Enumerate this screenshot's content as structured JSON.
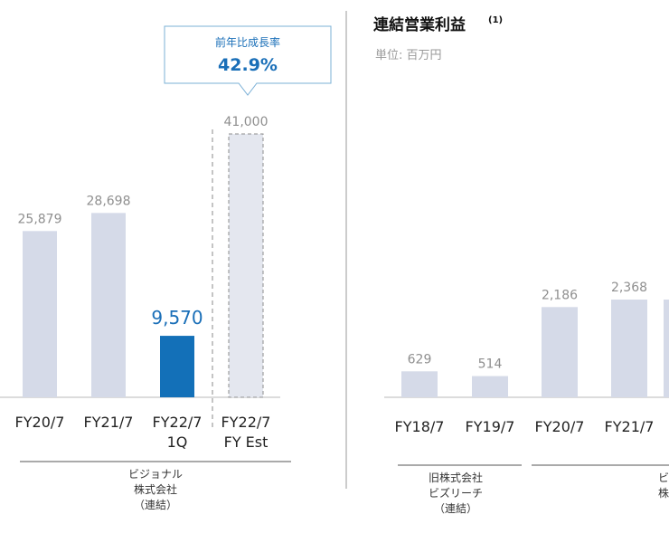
{
  "colors": {
    "bar_gray": "#d5dae8",
    "bar_blue": "#1370b8",
    "estimate_fill": "#e4e7ef",
    "estimate_border": "#8c8c8c",
    "axis": "#b8b8b8",
    "divider": "#9a9a9a",
    "callout_border": "#7bb0d6"
  },
  "callout": {
    "label": "前年比成長率",
    "value": "42.9%"
  },
  "chart_data": [
    {
      "type": "bar",
      "title": "",
      "xlabel": "",
      "ylabel": "",
      "ylim": [
        0,
        41000
      ],
      "categories": [
        [
          "FY20/7"
        ],
        [
          "FY21/7"
        ],
        [
          "FY22/7",
          "1Q"
        ],
        [
          "FY22/7",
          "FY Est"
        ]
      ],
      "values": [
        25879,
        28698,
        9570,
        41000
      ],
      "value_labels": [
        "25,879",
        "28,698",
        "9,570",
        "41,000"
      ],
      "bar_styles": [
        "actual",
        "actual",
        "highlight",
        "estimate"
      ],
      "groups": [
        {
          "lines": [
            "ビジョナル",
            "株式会社",
            "（連結）"
          ]
        }
      ]
    },
    {
      "type": "bar",
      "title": "連結営業利益",
      "title_superscript": "(1)",
      "unit": "単位: 百万円",
      "xlabel": "",
      "ylabel": "",
      "categories": [
        [
          "FY18/7"
        ],
        [
          "FY19/7"
        ],
        [
          "FY20/7"
        ],
        [
          "FY21/7"
        ]
      ],
      "values": [
        629,
        514,
        2186,
        2368
      ],
      "value_labels": [
        "629",
        "514",
        "2,186",
        "2,368"
      ],
      "bar_styles": [
        "actual",
        "actual",
        "actual",
        "actual",
        "actual"
      ],
      "extra_cut_bar": {
        "value": 2368,
        "label": ""
      },
      "groups": [
        {
          "lines": [
            "旧株式会社",
            "ビズリーチ",
            "（連結）"
          ]
        },
        {
          "lines": [
            "ビ",
            "株"
          ]
        }
      ]
    }
  ]
}
